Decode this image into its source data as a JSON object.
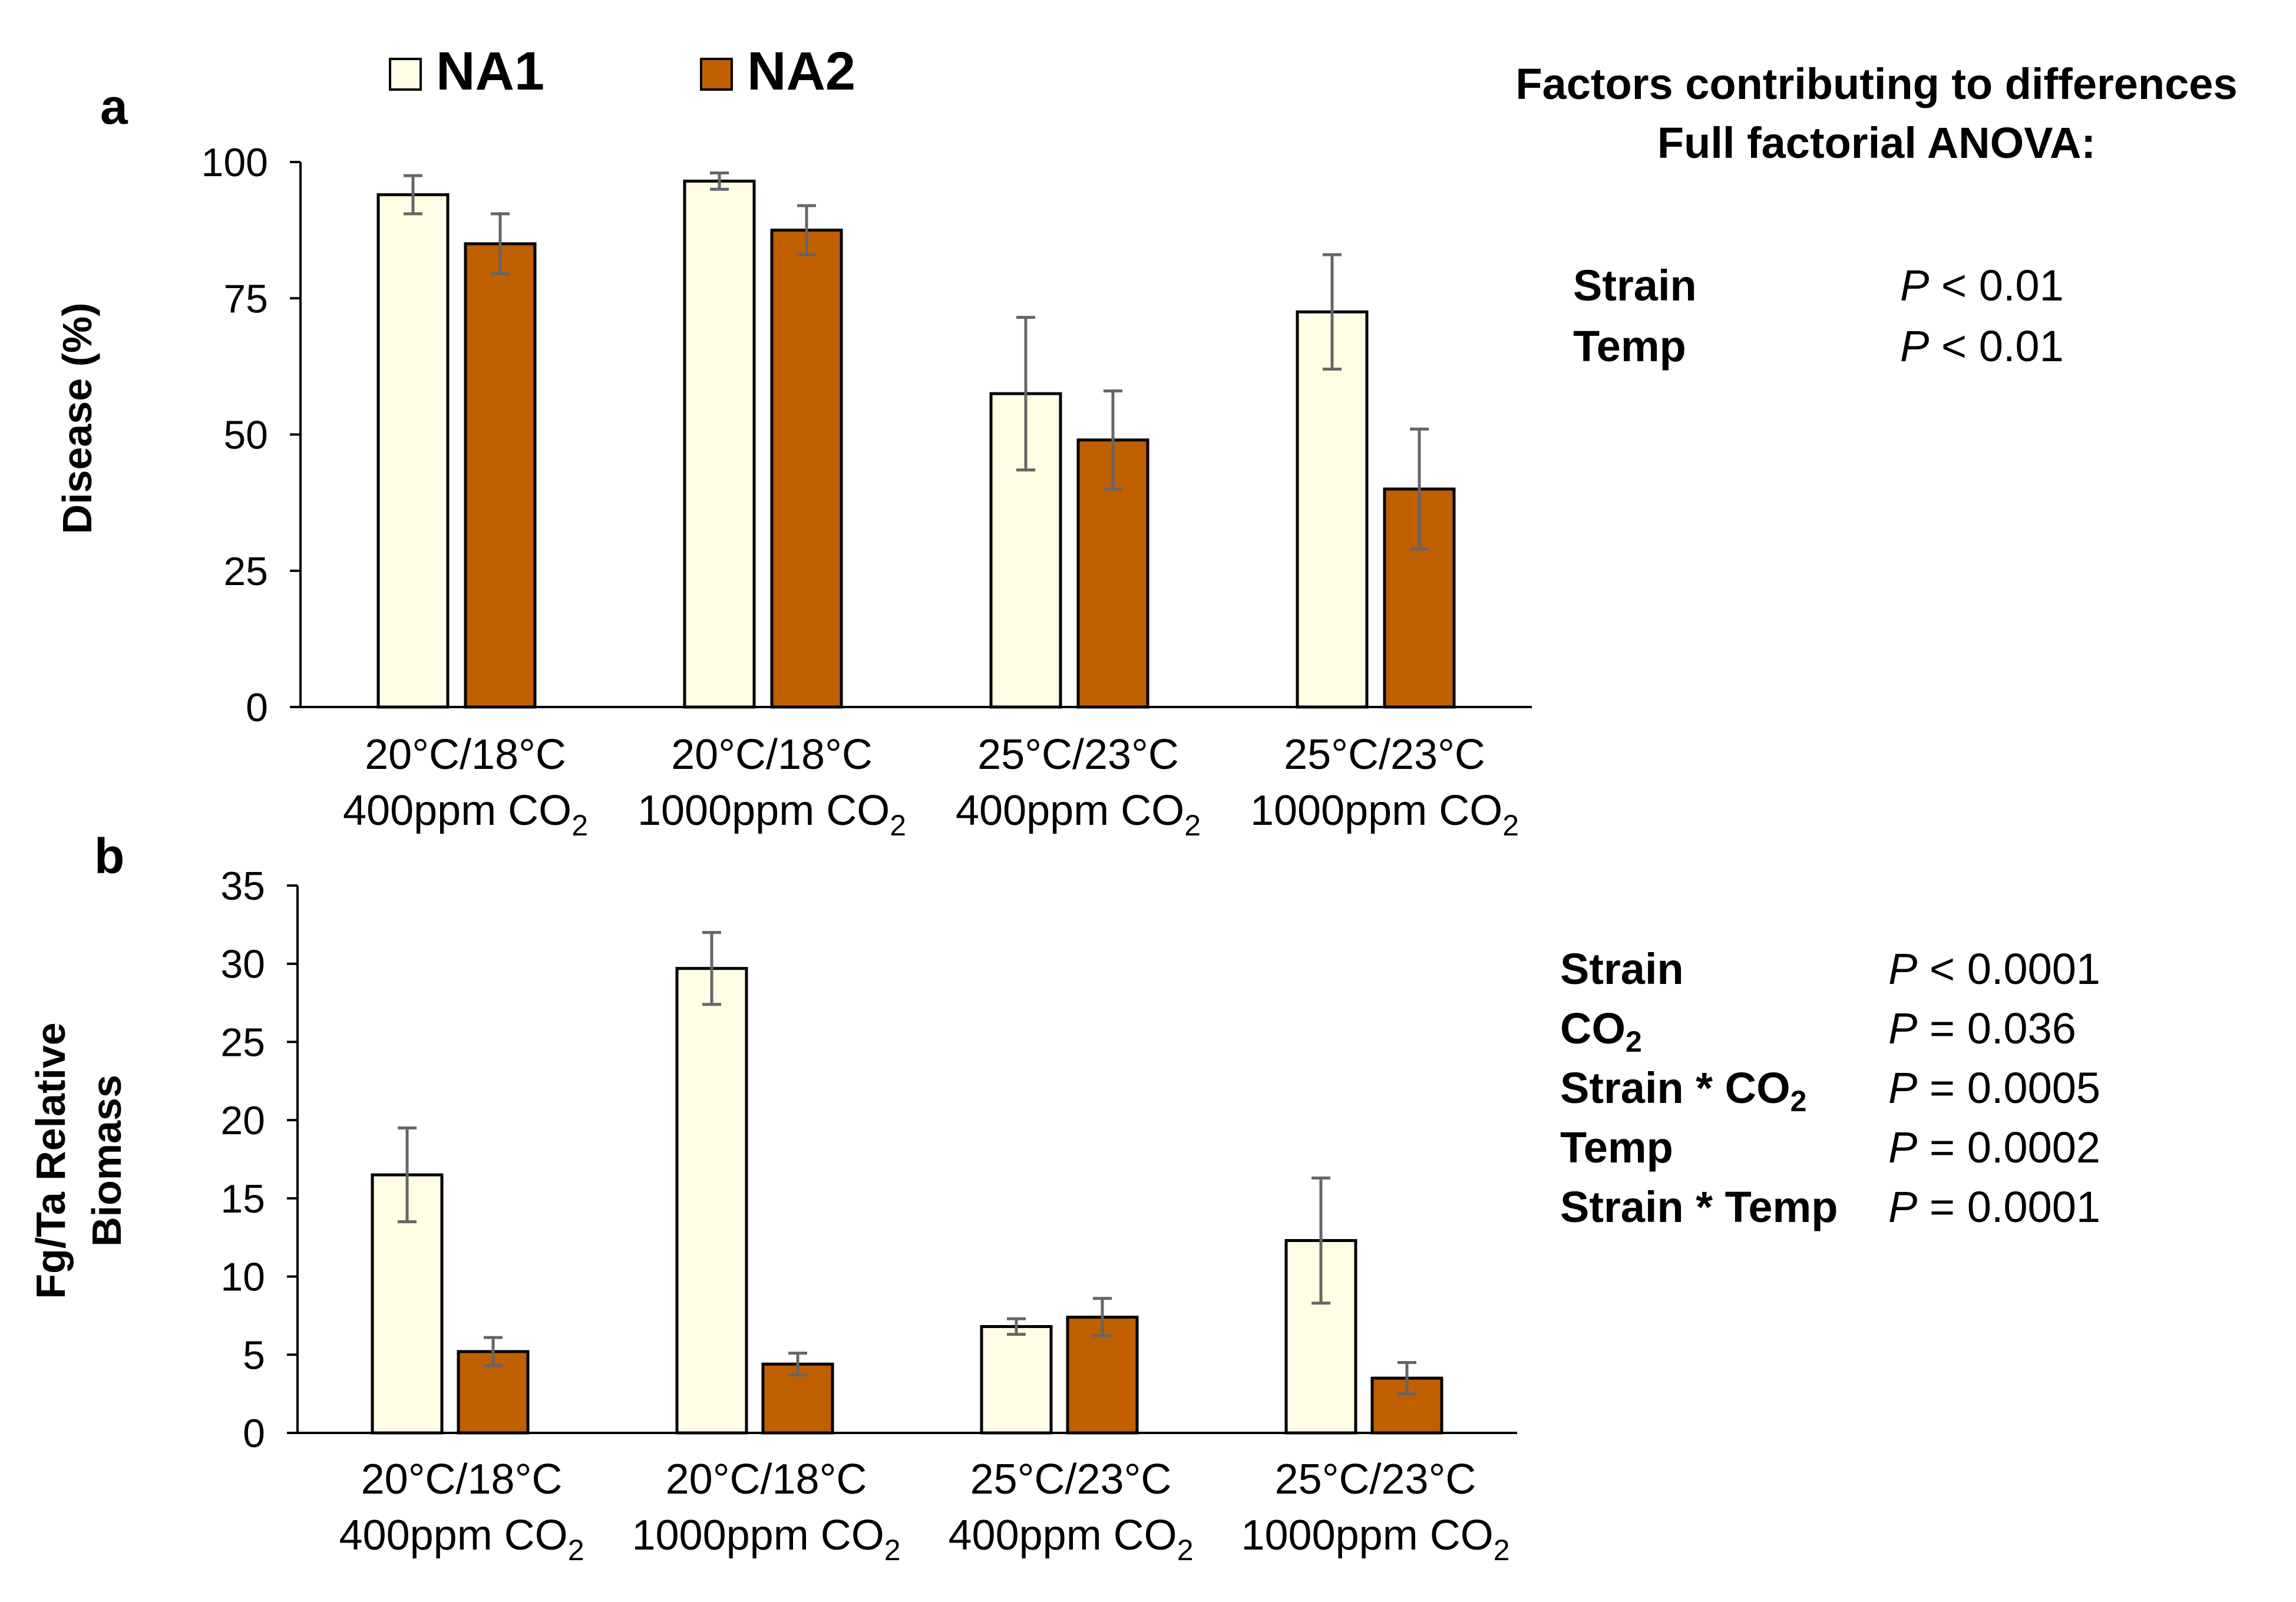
{
  "legend": [
    {
      "name": "NA1",
      "color": "#FFFDE5"
    },
    {
      "name": "NA2",
      "color": "#C05F00"
    }
  ],
  "stats": {
    "title_line1": "Factors contributing to differences",
    "title_line2": "Full factorial ANOVA:",
    "panel_a": [
      {
        "factor": "Strain",
        "p_symbol": "P",
        "p_rest": " < 0.01"
      },
      {
        "factor": "Temp",
        "p_symbol": "P",
        "p_rest": " < 0.01"
      }
    ],
    "panel_b": [
      {
        "factor": "Strain",
        "sub": "",
        "suffix": "",
        "p_symbol": "P",
        "p_rest": " < 0.0001"
      },
      {
        "factor": "CO",
        "sub": "2",
        "suffix": "",
        "p_symbol": "P",
        "p_rest": " = 0.036"
      },
      {
        "factor": "Strain * CO",
        "sub": "2",
        "suffix": "",
        "p_symbol": "P",
        "p_rest": " = 0.0005"
      },
      {
        "factor": "Temp",
        "sub": "",
        "suffix": "",
        "p_symbol": "P",
        "p_rest": " = 0.0002"
      },
      {
        "factor": "Strain * Temp",
        "sub": "",
        "suffix": "",
        "p_symbol": "P",
        "p_rest": " = 0.0001"
      }
    ]
  },
  "chart_data": [
    {
      "panel_label": "a",
      "type": "bar",
      "ylabel": "Disease (%)",
      "ylim": [
        0,
        100
      ],
      "yticks": [
        0,
        25,
        50,
        75,
        100
      ],
      "categories": [
        {
          "line1": "20°C/18°C",
          "line2": "400ppm CO",
          "sub": "2"
        },
        {
          "line1": "20°C/18°C",
          "line2": "1000ppm CO",
          "sub": "2"
        },
        {
          "line1": "25°C/23°C",
          "line2": "400ppm CO",
          "sub": "2"
        },
        {
          "line1": "25°C/23°C",
          "line2": "1000ppm CO",
          "sub": "2"
        }
      ],
      "series": [
        {
          "name": "NA1",
          "values": [
            94,
            96.5,
            57.5,
            72.5
          ],
          "errors": [
            3.5,
            1.5,
            14,
            10.5
          ]
        },
        {
          "name": "NA2",
          "values": [
            85,
            87.5,
            49,
            40
          ],
          "errors": [
            5.5,
            4.5,
            9,
            11
          ]
        }
      ]
    },
    {
      "panel_label": "b",
      "type": "bar",
      "ylabel_line1": "Fg/Ta Relative",
      "ylabel_line2": "Biomass",
      "ylim": [
        0,
        35
      ],
      "yticks": [
        0,
        5,
        10,
        15,
        20,
        25,
        30,
        35
      ],
      "categories": [
        {
          "line1": "20°C/18°C",
          "line2": "400ppm CO",
          "sub": "2"
        },
        {
          "line1": "20°C/18°C",
          "line2": "1000ppm CO",
          "sub": "2"
        },
        {
          "line1": "25°C/23°C",
          "line2": "400ppm CO",
          "sub": "2"
        },
        {
          "line1": "25°C/23°C",
          "line2": "1000ppm CO",
          "sub": "2"
        }
      ],
      "series": [
        {
          "name": "NA1",
          "values": [
            16.5,
            29.7,
            6.8,
            12.3
          ],
          "errors": [
            3,
            2.3,
            0.5,
            4
          ]
        },
        {
          "name": "NA2",
          "values": [
            5.2,
            4.4,
            7.4,
            3.5
          ],
          "errors": [
            0.9,
            0.7,
            1.2,
            1
          ]
        }
      ]
    }
  ]
}
